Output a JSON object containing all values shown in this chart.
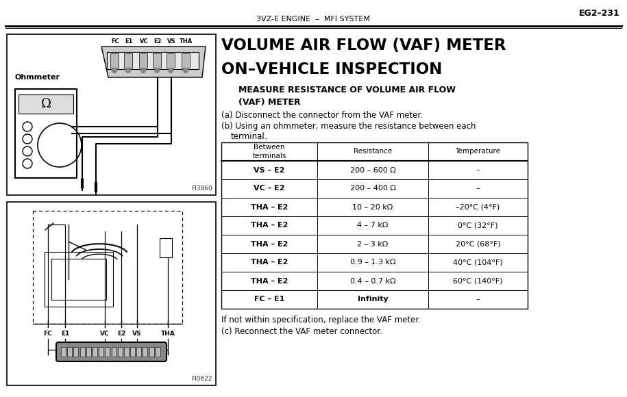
{
  "page_id": "EG2–231",
  "header_center": "3VZ-E ENGINE  –  MFI SYSTEM",
  "title_line1": "VOLUME AIR FLOW (VAF) METER",
  "title_line2": "ON–VEHICLE INSPECTION",
  "subtitle": "MEASURE RESISTANCE OF VOLUME AIR FLOW\n(VAF) METER",
  "step_a": "(a) Disconnect the connector from the VAF meter.",
  "step_b": "(b) Using an ohmmeter, measure the resistance between each",
  "step_b2": "      terminal.",
  "table_headers": [
    "Between\nterminals",
    "Resistance",
    "Temperature"
  ],
  "table_rows": [
    [
      "VS – E2",
      "200 – 600 Ω",
      "–"
    ],
    [
      "VC – E2",
      "200 – 400 Ω",
      "–"
    ],
    [
      "THA – E2",
      "10 – 20 kΩ",
      "–20°C (4°F)"
    ],
    [
      "THA – E2",
      "4 – 7 kΩ",
      "0°C (32°F)"
    ],
    [
      "THA – E2",
      "2 – 3 kΩ",
      "20°C (68°F)"
    ],
    [
      "THA – E2",
      "0.9 – 1.3 kΩ",
      "40°C (104°F)"
    ],
    [
      "THA – E2",
      "0.4 – 0.7 kΩ",
      "60°C (140°F)"
    ],
    [
      "FC – E1",
      "Infinity",
      "–"
    ]
  ],
  "footer_note1": "If not within specification, replace the VAF meter.",
  "footer_note2": "(c) Reconnect the VAF meter connector.",
  "bg_color": "#f0f0f0",
  "text_color": "#000000"
}
